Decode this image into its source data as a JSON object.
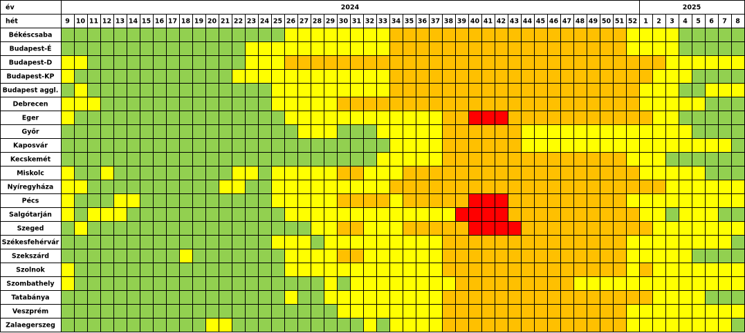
{
  "header": {
    "year_label": "év",
    "week_label": "hét",
    "years": [
      "2024",
      "2025"
    ],
    "weeks": [
      9,
      10,
      11,
      12,
      13,
      14,
      15,
      16,
      17,
      18,
      19,
      20,
      21,
      22,
      23,
      24,
      25,
      26,
      27,
      28,
      29,
      30,
      31,
      32,
      33,
      34,
      35,
      36,
      37,
      38,
      39,
      40,
      41,
      42,
      43,
      44,
      45,
      46,
      47,
      48,
      49,
      50,
      51,
      52,
      1,
      2,
      3,
      4,
      5,
      6,
      7,
      8
    ]
  },
  "colors": [
    "#92d050",
    "#ffff00",
    "#ffc000",
    "#ff0000"
  ],
  "rows": [
    {
      "name": "Békéscsaba",
      "cells": [
        0,
        0,
        0,
        0,
        0,
        0,
        0,
        0,
        0,
        0,
        0,
        0,
        0,
        0,
        0,
        0,
        0,
        1,
        1,
        1,
        1,
        1,
        1,
        1,
        1,
        2,
        2,
        2,
        2,
        2,
        2,
        2,
        2,
        2,
        2,
        2,
        2,
        2,
        2,
        2,
        2,
        2,
        2,
        1,
        1,
        1,
        1,
        0,
        0,
        0,
        0,
        0
      ]
    },
    {
      "name": "Budapest-É",
      "cells": [
        0,
        0,
        0,
        0,
        0,
        0,
        0,
        0,
        0,
        0,
        0,
        0,
        0,
        0,
        1,
        1,
        1,
        1,
        1,
        1,
        1,
        1,
        1,
        1,
        1,
        2,
        2,
        2,
        2,
        2,
        2,
        2,
        2,
        2,
        2,
        2,
        2,
        2,
        2,
        2,
        2,
        2,
        2,
        1,
        1,
        1,
        1,
        0,
        0,
        0,
        0,
        0
      ]
    },
    {
      "name": "Budapest-D",
      "cells": [
        1,
        1,
        0,
        0,
        0,
        0,
        0,
        0,
        0,
        0,
        0,
        0,
        0,
        0,
        1,
        1,
        1,
        2,
        2,
        2,
        2,
        2,
        2,
        2,
        2,
        2,
        2,
        2,
        2,
        2,
        2,
        2,
        2,
        2,
        2,
        2,
        2,
        2,
        2,
        2,
        2,
        2,
        2,
        2,
        2,
        2,
        1,
        1,
        1,
        1,
        1,
        1
      ]
    },
    {
      "name": "Budapest-KP",
      "cells": [
        1,
        0,
        0,
        0,
        0,
        0,
        0,
        0,
        0,
        0,
        0,
        0,
        0,
        1,
        1,
        1,
        1,
        1,
        1,
        1,
        1,
        1,
        1,
        1,
        1,
        2,
        2,
        2,
        2,
        2,
        2,
        2,
        2,
        2,
        2,
        2,
        2,
        2,
        2,
        2,
        2,
        2,
        2,
        2,
        2,
        1,
        1,
        1,
        0,
        0,
        0,
        0
      ]
    },
    {
      "name": "Budapest aggl.",
      "cells": [
        0,
        1,
        0,
        0,
        0,
        0,
        0,
        0,
        0,
        0,
        0,
        0,
        0,
        0,
        0,
        0,
        1,
        1,
        1,
        1,
        1,
        1,
        1,
        1,
        1,
        2,
        2,
        2,
        2,
        2,
        2,
        2,
        2,
        2,
        2,
        2,
        2,
        2,
        2,
        2,
        2,
        2,
        2,
        2,
        1,
        1,
        1,
        0,
        0,
        1,
        1,
        1
      ]
    },
    {
      "name": "Debrecen",
      "cells": [
        1,
        1,
        1,
        0,
        0,
        0,
        0,
        0,
        0,
        0,
        0,
        0,
        0,
        0,
        0,
        0,
        1,
        1,
        1,
        1,
        1,
        2,
        2,
        2,
        2,
        2,
        2,
        2,
        2,
        2,
        2,
        2,
        2,
        2,
        2,
        2,
        2,
        2,
        2,
        2,
        2,
        2,
        2,
        2,
        1,
        1,
        1,
        1,
        1,
        0,
        0,
        0
      ]
    },
    {
      "name": "Eger",
      "cells": [
        1,
        0,
        0,
        0,
        0,
        0,
        0,
        0,
        0,
        0,
        0,
        0,
        0,
        0,
        0,
        0,
        0,
        1,
        1,
        1,
        1,
        1,
        1,
        1,
        1,
        1,
        1,
        1,
        1,
        2,
        2,
        3,
        3,
        3,
        2,
        2,
        2,
        2,
        2,
        2,
        2,
        2,
        2,
        2,
        2,
        1,
        1,
        0,
        0,
        0,
        0,
        0
      ]
    },
    {
      "name": "Győr",
      "cells": [
        0,
        0,
        0,
        0,
        0,
        0,
        0,
        0,
        0,
        0,
        0,
        0,
        0,
        0,
        0,
        0,
        0,
        0,
        1,
        1,
        1,
        0,
        0,
        0,
        1,
        1,
        1,
        1,
        1,
        2,
        2,
        2,
        2,
        2,
        2,
        1,
        1,
        1,
        1,
        1,
        1,
        1,
        1,
        1,
        1,
        1,
        1,
        1,
        0,
        0,
        0,
        0
      ]
    },
    {
      "name": "Kaposvár",
      "cells": [
        0,
        0,
        0,
        0,
        0,
        0,
        0,
        0,
        0,
        0,
        0,
        0,
        0,
        0,
        0,
        0,
        0,
        0,
        0,
        0,
        0,
        0,
        0,
        0,
        0,
        1,
        1,
        1,
        1,
        2,
        2,
        2,
        2,
        2,
        2,
        1,
        1,
        1,
        1,
        1,
        1,
        1,
        1,
        1,
        1,
        1,
        1,
        1,
        1,
        1,
        1,
        0
      ]
    },
    {
      "name": "Kecskemét",
      "cells": [
        0,
        0,
        0,
        0,
        0,
        0,
        0,
        0,
        0,
        0,
        0,
        0,
        0,
        0,
        0,
        0,
        0,
        0,
        0,
        0,
        0,
        0,
        0,
        0,
        1,
        1,
        1,
        1,
        1,
        2,
        2,
        2,
        2,
        2,
        2,
        2,
        2,
        2,
        2,
        2,
        2,
        2,
        2,
        1,
        1,
        1,
        0,
        0,
        0,
        0,
        0,
        0
      ]
    },
    {
      "name": "Miskolc",
      "cells": [
        1,
        0,
        0,
        1,
        0,
        0,
        0,
        0,
        0,
        0,
        0,
        0,
        0,
        1,
        1,
        0,
        1,
        1,
        1,
        1,
        1,
        2,
        2,
        1,
        1,
        1,
        2,
        2,
        2,
        2,
        2,
        2,
        2,
        2,
        2,
        2,
        2,
        2,
        2,
        2,
        2,
        2,
        2,
        2,
        1,
        1,
        1,
        1,
        1,
        0,
        0,
        0
      ]
    },
    {
      "name": "Nyíregyháza",
      "cells": [
        1,
        1,
        0,
        0,
        0,
        0,
        0,
        0,
        0,
        0,
        0,
        0,
        1,
        1,
        0,
        0,
        1,
        1,
        1,
        1,
        1,
        1,
        1,
        1,
        1,
        2,
        2,
        2,
        2,
        2,
        2,
        2,
        2,
        2,
        2,
        2,
        2,
        2,
        2,
        2,
        2,
        2,
        2,
        2,
        2,
        2,
        1,
        1,
        1,
        1,
        1,
        1
      ]
    },
    {
      "name": "Pécs",
      "cells": [
        1,
        0,
        0,
        0,
        1,
        1,
        0,
        0,
        0,
        0,
        0,
        0,
        0,
        0,
        0,
        0,
        1,
        1,
        1,
        1,
        1,
        2,
        2,
        2,
        2,
        1,
        2,
        2,
        2,
        2,
        2,
        3,
        3,
        3,
        2,
        2,
        2,
        2,
        2,
        2,
        2,
        2,
        2,
        1,
        1,
        1,
        1,
        1,
        1,
        1,
        1,
        1
      ]
    },
    {
      "name": "Salgótarján",
      "cells": [
        1,
        0,
        1,
        1,
        1,
        0,
        0,
        0,
        0,
        0,
        0,
        0,
        0,
        0,
        0,
        0,
        0,
        1,
        1,
        1,
        1,
        1,
        1,
        1,
        1,
        1,
        1,
        1,
        1,
        1,
        3,
        3,
        3,
        3,
        2,
        2,
        2,
        2,
        2,
        2,
        2,
        2,
        2,
        2,
        1,
        1,
        0,
        1,
        1,
        1,
        0,
        0
      ]
    },
    {
      "name": "Szeged",
      "cells": [
        0,
        1,
        0,
        0,
        0,
        0,
        0,
        0,
        0,
        0,
        0,
        0,
        0,
        0,
        0,
        0,
        0,
        0,
        0,
        1,
        1,
        2,
        2,
        1,
        1,
        1,
        2,
        2,
        2,
        2,
        2,
        3,
        3,
        3,
        3,
        2,
        2,
        2,
        2,
        2,
        2,
        2,
        2,
        2,
        2,
        1,
        1,
        1,
        1,
        1,
        1,
        1
      ]
    },
    {
      "name": "Székesfehérvár",
      "cells": [
        0,
        0,
        0,
        0,
        0,
        0,
        0,
        0,
        0,
        0,
        0,
        0,
        0,
        0,
        0,
        0,
        1,
        1,
        1,
        0,
        1,
        1,
        1,
        1,
        1,
        1,
        1,
        1,
        1,
        2,
        2,
        2,
        2,
        2,
        2,
        2,
        2,
        2,
        2,
        2,
        2,
        2,
        2,
        1,
        1,
        1,
        1,
        1,
        1,
        1,
        1,
        0
      ]
    },
    {
      "name": "Szekszárd",
      "cells": [
        0,
        0,
        0,
        0,
        0,
        0,
        0,
        0,
        0,
        1,
        0,
        0,
        0,
        0,
        0,
        0,
        0,
        1,
        1,
        1,
        1,
        2,
        2,
        1,
        1,
        1,
        1,
        1,
        1,
        2,
        2,
        2,
        2,
        2,
        2,
        2,
        2,
        2,
        2,
        2,
        2,
        2,
        2,
        1,
        1,
        1,
        1,
        1,
        0,
        0,
        0,
        0
      ]
    },
    {
      "name": "Szolnok",
      "cells": [
        1,
        0,
        0,
        0,
        0,
        0,
        0,
        0,
        0,
        0,
        0,
        0,
        0,
        0,
        0,
        0,
        0,
        1,
        1,
        1,
        1,
        1,
        1,
        1,
        1,
        1,
        1,
        1,
        1,
        2,
        2,
        2,
        2,
        2,
        2,
        2,
        2,
        2,
        2,
        2,
        2,
        2,
        2,
        1,
        2,
        1,
        1,
        1,
        1,
        1,
        1,
        1
      ]
    },
    {
      "name": "Szombathely",
      "cells": [
        1,
        0,
        0,
        0,
        0,
        0,
        0,
        0,
        0,
        0,
        0,
        0,
        0,
        0,
        0,
        0,
        0,
        0,
        0,
        0,
        1,
        0,
        1,
        1,
        1,
        1,
        1,
        1,
        1,
        1,
        2,
        2,
        2,
        2,
        2,
        2,
        2,
        2,
        2,
        1,
        1,
        1,
        1,
        1,
        1,
        1,
        1,
        1,
        1,
        1,
        1,
        1
      ]
    },
    {
      "name": "Tatabánya",
      "cells": [
        0,
        0,
        0,
        0,
        0,
        0,
        0,
        0,
        0,
        0,
        0,
        0,
        0,
        0,
        0,
        0,
        0,
        1,
        0,
        0,
        1,
        1,
        1,
        1,
        1,
        1,
        1,
        1,
        1,
        2,
        2,
        2,
        2,
        2,
        2,
        2,
        2,
        2,
        2,
        2,
        2,
        2,
        2,
        2,
        2,
        1,
        1,
        1,
        1,
        0,
        0,
        0
      ]
    },
    {
      "name": "Veszprém",
      "cells": [
        0,
        0,
        0,
        0,
        0,
        0,
        0,
        0,
        0,
        0,
        0,
        0,
        0,
        0,
        0,
        0,
        0,
        0,
        0,
        0,
        0,
        1,
        1,
        1,
        1,
        1,
        1,
        1,
        1,
        2,
        2,
        2,
        2,
        2,
        2,
        2,
        2,
        2,
        2,
        2,
        2,
        2,
        2,
        1,
        1,
        1,
        1,
        1,
        1,
        1,
        1,
        1
      ]
    },
    {
      "name": "Zalaegerszeg",
      "cells": [
        0,
        0,
        0,
        0,
        0,
        0,
        0,
        0,
        0,
        0,
        0,
        1,
        1,
        0,
        0,
        0,
        0,
        0,
        0,
        0,
        0,
        0,
        0,
        1,
        0,
        1,
        1,
        1,
        1,
        2,
        2,
        2,
        2,
        2,
        2,
        2,
        2,
        2,
        2,
        2,
        2,
        2,
        2,
        1,
        1,
        1,
        1,
        1,
        1,
        1,
        1,
        0
      ]
    }
  ]
}
